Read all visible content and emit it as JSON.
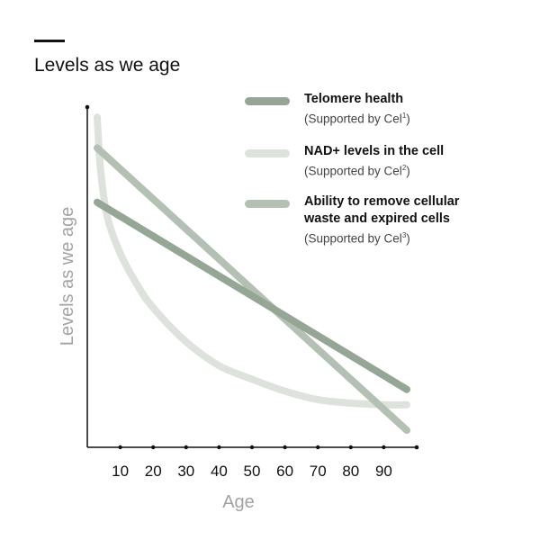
{
  "title": "Levels as we age",
  "chart_data": {
    "type": "line",
    "title": "Levels as we age",
    "xlabel": "Age",
    "ylabel": "Levels as we age",
    "xlim": [
      0,
      100
    ],
    "ylim": [
      0,
      100
    ],
    "x_ticks": [
      10,
      20,
      30,
      40,
      50,
      60,
      70,
      80,
      90
    ],
    "y_ticks_shown": false,
    "grid": false,
    "legend_position": "top-right",
    "series": [
      {
        "name": "Telomere health",
        "subtitle": "(Supported by Cel",
        "sup": "1",
        "subtitle_end": ")",
        "color": "#96a696",
        "x": [
          3,
          97
        ],
        "y": [
          72,
          17
        ]
      },
      {
        "name": "NAD+ levels in the cell",
        "subtitle": "(Supported by Cel",
        "sup": "2",
        "subtitle_end": ")",
        "color": "#dde3dc",
        "x": [
          3,
          4,
          6,
          10,
          15,
          20,
          30,
          40,
          50,
          60,
          70,
          80,
          90,
          97
        ],
        "y": [
          97,
          82,
          68,
          57,
          48,
          41,
          31,
          24,
          20,
          16.5,
          14,
          13,
          12.5,
          12.5
        ]
      },
      {
        "name": "Ability to remove cellular waste and expired cells",
        "name_lines": [
          "Ability to remove cellular",
          "waste and expired cells"
        ],
        "subtitle": "(Supported by Cel",
        "sup": "3",
        "subtitle_end": ")",
        "color": "#b5c0b4",
        "x": [
          3,
          97
        ],
        "y": [
          88,
          5
        ]
      }
    ]
  }
}
